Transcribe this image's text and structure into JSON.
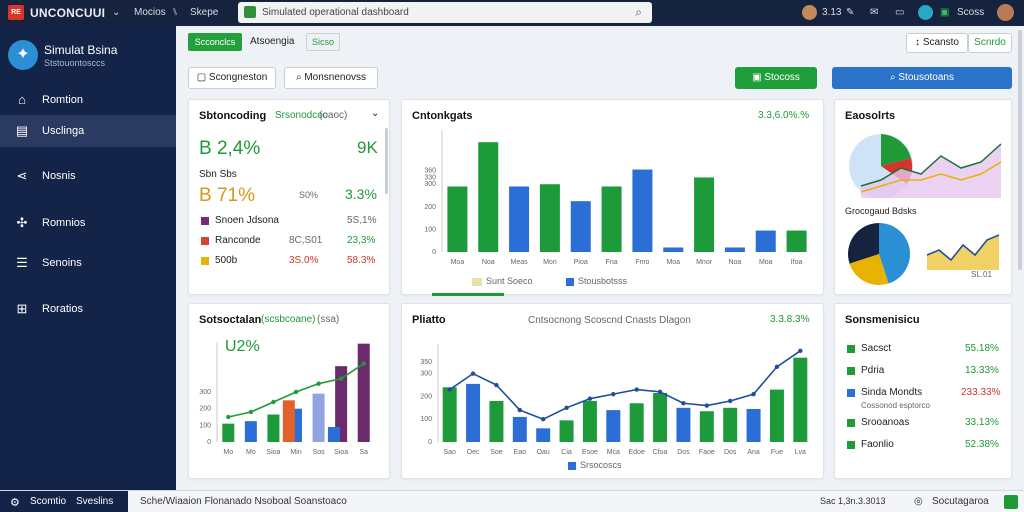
{
  "topbar": {
    "logo_badge": "RE",
    "app_name": "UNCONCUUI",
    "nav1": "Mocios",
    "nav2": "Skepe",
    "search_text": "Simulated operational dashboard",
    "time": "3.13",
    "user": "Scoss"
  },
  "sidebar": {
    "brand_title": "Simulat Bsina",
    "brand_sub": "Ststouontosccs",
    "items": [
      {
        "label": "Romtion"
      },
      {
        "label": "Usclinga"
      },
      {
        "label": "Nosnis"
      },
      {
        "label": "Romnios"
      },
      {
        "label": "Senoins"
      },
      {
        "label": "Roratios"
      }
    ]
  },
  "toolbar": {
    "tab1": "Scconclcs",
    "tab2": "Atsoengia",
    "tab3": "Sicso",
    "right_btn": "Scansto",
    "right_tag": "Scnrdo"
  },
  "controls": {
    "btn1": "Scongneston",
    "btn2": "Monsnenovss",
    "green_btn": "Stocoss",
    "blue_btn": "Stousotoans"
  },
  "panel_a": {
    "title": "Sbtoncoding",
    "subtitle": "Srsonodcoc",
    "sub_detail": "(oaoc)",
    "big1": "B 2,4%",
    "big1_right": "9K",
    "label2": "Sbn Sbs",
    "big2": "B 71%",
    "mid2": "S0%",
    "right2": "3.3%",
    "rows": [
      {
        "name": "Snoen Jdsona",
        "v1": "",
        "v2": "5S,1%",
        "color": "#7a2a7a",
        "v2c": "#666"
      },
      {
        "name": "Ranconde",
        "v1": "8C,S01",
        "v2": "23,3%",
        "color": "#d64531",
        "v2c": "#1f9a36"
      },
      {
        "name": "500b",
        "v1": "3S.0%",
        "v2": "58.3%",
        "color": "#e8b200",
        "v1c": "#d6342b",
        "v2c": "#d6342b"
      }
    ]
  },
  "panel_b": {
    "title": "Cntonkgats",
    "value": "3.3,6.0%.%",
    "legend1": "Sunt Soeco",
    "legend2": "Stousbotsss"
  },
  "panel_c": {
    "title": "Eaosolrts",
    "subtitle": "Grocogaud Bdsks",
    "readout": "SL.01"
  },
  "panel_d": {
    "title": "Sotsoctalan",
    "subtitle": "(scsbcoane)",
    "sub_detail": "(ssa)",
    "big": "U2%"
  },
  "panel_e": {
    "title": "Pliatto",
    "subtitle": "Cntsocnong Scoscnd Cnasts Dlagon",
    "value": "3.3.8.3%",
    "legend1": "Srsocoscs"
  },
  "panel_f": {
    "title": "Sonsmenisicu",
    "rows": [
      {
        "name": "Sacsct",
        "value": "55.18%",
        "color": "#1f9a36",
        "vc": "#1f9a36"
      },
      {
        "name": "Pdria",
        "value": "13.33%",
        "color": "#1f9a36",
        "vc": "#1f9a36"
      },
      {
        "name": "Sinda Mondts",
        "sub": "Cossonod esptorco",
        "value": "233.33%",
        "color": "#2b6fd6",
        "vc": "#d6342b"
      },
      {
        "name": "Srooanoas",
        "value": "33.13%",
        "color": "#1f9a36",
        "vc": "#1f9a36"
      },
      {
        "name": "Faonlio",
        "value": "52.38%",
        "color": "#1f9a36",
        "vc": "#1f9a36"
      }
    ]
  },
  "statusbar": {
    "left1": "Scomtio",
    "left2": "Sveslins",
    "center": "Sche/Wiaaion  Flonanado  Nsoboal  Soanstoaco",
    "right1": "Sac 1,3n.3.3013",
    "right2": "Socutagaroa"
  },
  "chart_data": [
    {
      "id": "panel_b",
      "type": "bar",
      "categories": [
        "Moa",
        "Noa",
        "Meas",
        "Mon",
        "Pioa",
        "Fna",
        "Fmo",
        "Moa",
        "Mnor",
        "Noa",
        "Moa",
        "Ifoa"
      ],
      "series": [
        {
          "values": [
            290,
            486,
            290,
            300,
            225,
            290,
            365,
            20,
            330,
            20,
            95,
            95
          ],
          "colors": [
            "#1d9b3a",
            "#1d9b3a",
            "#2b6fd6",
            "#1d9b3a",
            "#2b6fd6",
            "#1d9b3a",
            "#2b6fd6",
            "#2b6fd6",
            "#1d9b3a",
            "#2b6fd6",
            "#2b6fd6",
            "#1d9b3a"
          ]
        }
      ],
      "yticks": [
        0,
        100,
        200,
        300,
        330,
        360
      ],
      "ylim": [
        0,
        540
      ]
    },
    {
      "id": "panel_d",
      "type": "bar",
      "categories": [
        "Mo",
        "Mo",
        "Sioa",
        "Min",
        "Sos",
        "Sioa",
        "Sa"
      ],
      "series": [
        {
          "name": "bars",
          "values": [
            110,
            125,
            165,
            200,
            290,
            455,
            590
          ],
          "colors": [
            "#1d9b3a",
            "#2b6fd6",
            "#1d9b3a",
            "#2b6fd6",
            "#8fa4e0",
            "#6b2a6b",
            "#6b2a6b"
          ]
        }
      ],
      "extra_bars": [
        {
          "index": 3,
          "value": 250,
          "color": "#e2622b"
        },
        {
          "index": 5,
          "value": 90,
          "color": "#2b6fd6"
        }
      ],
      "line": [
        150,
        180,
        240,
        300,
        350,
        380,
        470
      ],
      "yticks": [
        0,
        100,
        200,
        300
      ],
      "ylim": [
        0,
        600
      ]
    },
    {
      "id": "panel_e",
      "type": "bar",
      "categories": [
        "Sao",
        "Oec",
        "Soe",
        "Eao",
        "Oau",
        "Cia",
        "Esoe",
        "Mca",
        "Edoe",
        "Cfoa",
        "Dos",
        "Faoe",
        "Dos",
        "Ana",
        "Fue",
        "Lva"
      ],
      "series": [
        {
          "name": "bars",
          "values": [
            240,
            255,
            180,
            110,
            60,
            95,
            180,
            140,
            170,
            215,
            150,
            135,
            150,
            145,
            230,
            370
          ],
          "colors": [
            "#1d9b3a",
            "#2b6fd6",
            "#1d9b3a",
            "#2b6fd6",
            "#2b6fd6",
            "#1d9b3a",
            "#1d9b3a",
            "#2b6fd6",
            "#1d9b3a",
            "#1d9b3a",
            "#2b6fd6",
            "#1d9b3a",
            "#1d9b3a",
            "#2b6fd6",
            "#1d9b3a",
            "#1d9b3a"
          ]
        }
      ],
      "line": [
        230,
        300,
        250,
        140,
        100,
        150,
        190,
        210,
        230,
        220,
        170,
        160,
        180,
        210,
        330,
        400
      ],
      "yticks": [
        0,
        100,
        200,
        300,
        350
      ],
      "ylim": [
        0,
        430
      ]
    },
    {
      "id": "panel_c_area",
      "type": "area",
      "x": [
        1,
        2,
        3,
        4,
        5,
        6,
        7,
        8
      ],
      "series": [
        {
          "values": [
            2,
            3,
            5,
            4,
            7,
            5,
            6,
            9
          ]
        },
        {
          "values": [
            1,
            2,
            3,
            3,
            4,
            3,
            4,
            6
          ]
        }
      ]
    },
    {
      "id": "panel_c_pie",
      "type": "pie",
      "values": [
        45,
        25,
        30
      ],
      "colors": [
        "#2b8fd6",
        "#e8b200",
        "#16233f"
      ]
    },
    {
      "id": "panel_c_line",
      "type": "line",
      "x": [
        1,
        2,
        3,
        4,
        5,
        6,
        7
      ],
      "series": [
        {
          "values": [
            3,
            4,
            2,
            5,
            3,
            6,
            7
          ]
        }
      ]
    }
  ]
}
